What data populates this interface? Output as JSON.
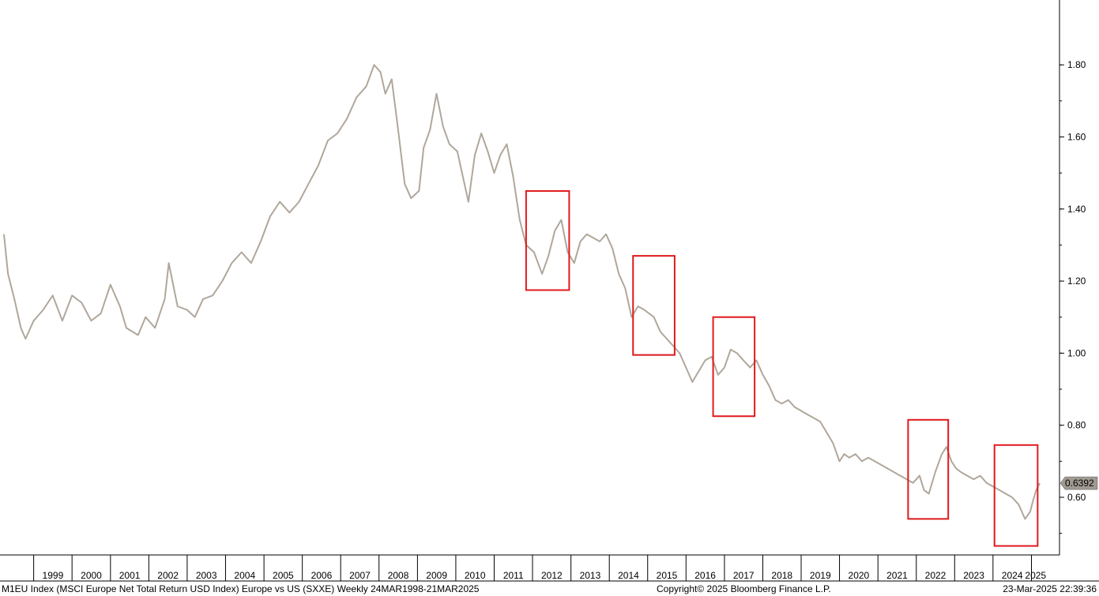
{
  "footer": {
    "left": "M1EU Index (MSCI Europe Net Total Return USD Index) Europe vs US (SXXE)  Weekly 24MAR1998-21MAR2025",
    "center": "Copyright© 2025 Bloomberg Finance L.P.",
    "right": "23-Mar-2025 22:39:36"
  },
  "colors": {
    "series": "#b0a79b",
    "highlight_box": "#e0191c",
    "last_value_badge": "#a09a92",
    "axis": "#000000"
  },
  "chart_data": {
    "type": "line",
    "title": "",
    "xlabel": "",
    "ylabel": "",
    "x_range": [
      "1998-03-24",
      "2025-03-21"
    ],
    "ylim": [
      0.44,
      1.98
    ],
    "yticks": [
      "0.60",
      "0.80",
      "1.00",
      "1.20",
      "1.40",
      "1.60",
      "1.80"
    ],
    "xticks": [
      "1999",
      "2000",
      "2001",
      "2002",
      "2003",
      "2004",
      "2005",
      "2006",
      "2007",
      "2008",
      "2009",
      "2010",
      "2011",
      "2012",
      "2013",
      "2014",
      "2015",
      "2016",
      "2017",
      "2018",
      "2019",
      "2020",
      "2021",
      "2022",
      "2023",
      "2024",
      "2025"
    ],
    "last_value": "0.6392",
    "grid": false,
    "legend": "none",
    "series": [
      {
        "x": [
          "1998-03-24",
          "1998-05-01",
          "1998-07-01",
          "1998-09-01",
          "1998-10-15",
          "1999-01-01",
          "1999-04-01",
          "1999-07-01",
          "1999-10-01",
          "2000-01-01",
          "2000-04-01",
          "2000-07-01",
          "2000-10-01",
          "2001-01-01",
          "2001-04-01",
          "2001-06-01",
          "2001-09-20",
          "2001-12-01",
          "2002-03-01",
          "2002-06-01",
          "2002-07-10",
          "2002-10-01",
          "2003-01-01",
          "2003-03-15",
          "2003-06-01",
          "2003-09-01",
          "2003-12-01",
          "2004-03-01",
          "2004-06-01",
          "2004-09-01",
          "2004-12-01",
          "2005-03-01",
          "2005-06-01",
          "2005-09-01",
          "2005-12-01",
          "2006-03-01",
          "2006-06-01",
          "2006-09-01",
          "2006-12-01",
          "2007-03-01",
          "2007-06-01",
          "2007-09-01",
          "2007-11-15",
          "2008-01-15",
          "2008-03-01",
          "2008-05-01",
          "2008-07-01",
          "2008-09-01",
          "2008-11-01",
          "2009-01-15",
          "2009-03-01",
          "2009-05-01",
          "2009-07-01",
          "2009-09-01",
          "2009-11-01",
          "2010-01-15",
          "2010-03-01",
          "2010-05-01",
          "2010-07-01",
          "2010-09-01",
          "2010-11-01",
          "2011-01-01",
          "2011-03-01",
          "2011-05-01",
          "2011-07-01",
          "2011-09-01",
          "2011-11-01",
          "2012-01-15",
          "2012-04-01",
          "2012-06-01",
          "2012-08-01",
          "2012-10-01",
          "2012-12-01",
          "2013-02-01",
          "2013-04-01",
          "2013-06-01",
          "2013-08-01",
          "2013-10-01",
          "2013-12-01",
          "2014-02-01",
          "2014-04-01",
          "2014-06-01",
          "2014-08-01",
          "2014-10-01",
          "2014-12-01",
          "2015-03-01",
          "2015-05-01",
          "2015-07-01",
          "2015-09-01",
          "2015-11-01",
          "2016-01-01",
          "2016-03-01",
          "2016-05-01",
          "2016-07-01",
          "2016-09-01",
          "2016-11-01",
          "2017-01-01",
          "2017-03-01",
          "2017-05-01",
          "2017-07-01",
          "2017-09-01",
          "2017-11-01",
          "2018-01-01",
          "2018-03-01",
          "2018-05-01",
          "2018-07-01",
          "2018-09-01",
          "2018-11-01",
          "2019-01-01",
          "2019-03-01",
          "2019-05-01",
          "2019-07-01",
          "2019-09-01",
          "2019-11-01",
          "2020-01-01",
          "2020-02-15",
          "2020-04-01",
          "2020-06-01",
          "2020-08-01",
          "2020-10-01",
          "2020-12-01",
          "2021-02-01",
          "2021-04-01",
          "2021-06-01",
          "2021-08-01",
          "2021-10-01",
          "2021-12-01",
          "2022-02-01",
          "2022-03-15",
          "2022-05-01",
          "2022-07-01",
          "2022-09-01",
          "2022-10-15",
          "2022-12-01",
          "2023-01-15",
          "2023-03-01",
          "2023-05-01",
          "2023-07-01",
          "2023-09-01",
          "2023-11-01",
          "2024-01-01",
          "2024-03-01",
          "2024-05-01",
          "2024-07-01",
          "2024-09-01",
          "2024-11-01",
          "2024-12-20",
          "2025-01-15",
          "2025-02-15",
          "2025-03-21"
        ],
        "values": [
          1.33,
          1.22,
          1.15,
          1.07,
          1.04,
          1.09,
          1.12,
          1.16,
          1.09,
          1.16,
          1.14,
          1.09,
          1.11,
          1.19,
          1.13,
          1.07,
          1.05,
          1.1,
          1.07,
          1.15,
          1.25,
          1.13,
          1.12,
          1.1,
          1.15,
          1.16,
          1.2,
          1.25,
          1.28,
          1.25,
          1.31,
          1.38,
          1.42,
          1.39,
          1.42,
          1.47,
          1.52,
          1.59,
          1.61,
          1.65,
          1.71,
          1.74,
          1.8,
          1.78,
          1.72,
          1.76,
          1.62,
          1.47,
          1.43,
          1.45,
          1.57,
          1.62,
          1.72,
          1.63,
          1.58,
          1.56,
          1.5,
          1.42,
          1.55,
          1.61,
          1.56,
          1.5,
          1.55,
          1.58,
          1.49,
          1.37,
          1.3,
          1.28,
          1.22,
          1.27,
          1.34,
          1.37,
          1.28,
          1.25,
          1.31,
          1.33,
          1.32,
          1.31,
          1.33,
          1.29,
          1.22,
          1.18,
          1.1,
          1.13,
          1.12,
          1.1,
          1.06,
          1.04,
          1.02,
          1.0,
          0.96,
          0.92,
          0.95,
          0.98,
          0.99,
          0.94,
          0.96,
          1.01,
          1.0,
          0.98,
          0.96,
          0.98,
          0.94,
          0.91,
          0.87,
          0.86,
          0.87,
          0.85,
          0.84,
          0.83,
          0.82,
          0.81,
          0.78,
          0.75,
          0.7,
          0.72,
          0.71,
          0.72,
          0.7,
          0.71,
          0.7,
          0.69,
          0.68,
          0.67,
          0.66,
          0.65,
          0.64,
          0.66,
          0.62,
          0.61,
          0.67,
          0.72,
          0.74,
          0.7,
          0.68,
          0.67,
          0.66,
          0.65,
          0.66,
          0.64,
          0.63,
          0.62,
          0.61,
          0.6,
          0.58,
          0.54,
          0.56,
          0.59,
          0.62,
          0.6392
        ]
      }
    ],
    "highlight_boxes": [
      {
        "x": [
          "2011-11-01",
          "2012-12-15"
        ],
        "y": [
          1.175,
          1.45
        ]
      },
      {
        "x": [
          "2014-08-15",
          "2015-09-15"
        ],
        "y": [
          0.995,
          1.27
        ]
      },
      {
        "x": [
          "2016-09-15",
          "2017-10-15"
        ],
        "y": [
          0.825,
          1.1
        ]
      },
      {
        "x": [
          "2021-10-15",
          "2022-11-01"
        ],
        "y": [
          0.54,
          0.815
        ]
      },
      {
        "x": [
          "2024-01-15",
          "2025-03-01"
        ],
        "y": [
          0.465,
          0.745
        ]
      }
    ]
  }
}
